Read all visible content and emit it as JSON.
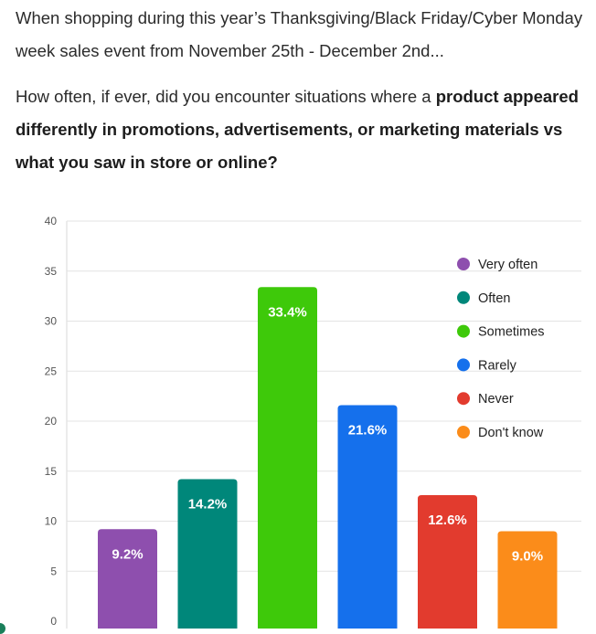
{
  "intro_text": "When shopping during this year’s Thanksgiving/Black Friday/Cyber Monday week sales event from November 25th - December 2nd...",
  "question": {
    "prefix": "How often, if ever, did you encounter situations where a ",
    "bold": "product appeared differently in promotions, advertisements, or marketing materials vs what you saw in store or online?"
  },
  "chart_data": {
    "type": "bar",
    "title": "",
    "xlabel": "",
    "ylabel": "",
    "ylim": [
      0,
      40
    ],
    "yticks": [
      0,
      5,
      10,
      15,
      20,
      25,
      30,
      35,
      40
    ],
    "grid": true,
    "legend_position": "right",
    "categories": [
      "Very often",
      "Often",
      "Sometimes",
      "Rarely",
      "Never",
      "Don't know"
    ],
    "values": [
      9.2,
      14.2,
      33.4,
      21.6,
      12.6,
      9.0
    ],
    "data_labels": [
      "9.2%",
      "14.2%",
      "33.4%",
      "21.6%",
      "12.6%",
      "9.0%"
    ],
    "colors": [
      "#8e4fae",
      "#00877a",
      "#3ec90a",
      "#1570ec",
      "#e23b2e",
      "#fb8c1a"
    ]
  }
}
